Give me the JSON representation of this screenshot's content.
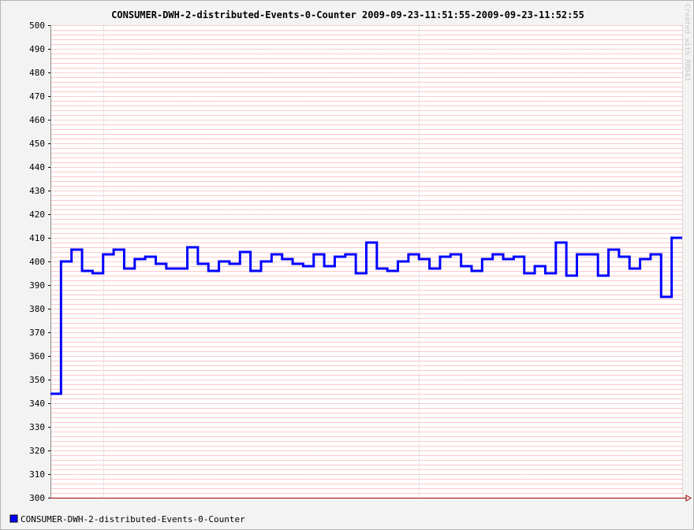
{
  "chart_data": {
    "type": "line",
    "title": "CONSUMER-DWH-2-distributed-Events-0-Counter 2009-09-23-11:51:55-2009-09-23-11:52:55",
    "xlabel": "",
    "ylabel": "",
    "ylim": [
      300,
      500
    ],
    "y_ticks": [
      "300",
      "310",
      "320",
      "330",
      "340",
      "350",
      "360",
      "370",
      "380",
      "390",
      "400",
      "410",
      "420",
      "430",
      "440",
      "450",
      "460",
      "470",
      "480",
      "490",
      "500"
    ],
    "grid": true,
    "legend_position": "bottom-left",
    "series": [
      {
        "name": "CONSUMER-DWH-2-distributed-Events-0-Counter",
        "color": "#0000ff",
        "step": true,
        "values": [
          344,
          400,
          405,
          396,
          395,
          403,
          405,
          397,
          401,
          402,
          399,
          397,
          397,
          406,
          399,
          396,
          400,
          399,
          404,
          396,
          400,
          403,
          401,
          399,
          398,
          403,
          398,
          402,
          403,
          395,
          408,
          397,
          396,
          400,
          403,
          401,
          397,
          402,
          403,
          398,
          396,
          401,
          403,
          401,
          402,
          395,
          398,
          395,
          408,
          394,
          403,
          403,
          394,
          405,
          402,
          397,
          401,
          403,
          385,
          410
        ]
      }
    ]
  },
  "watermark": "Created with RRD4J",
  "colors": {
    "background": "#f3f3f3",
    "plot_background": "#ffffff",
    "minor_grid": "#ffc8c8",
    "major_grid": "#c8c8c8",
    "axis": "#a00000",
    "series": "#0000ff"
  }
}
